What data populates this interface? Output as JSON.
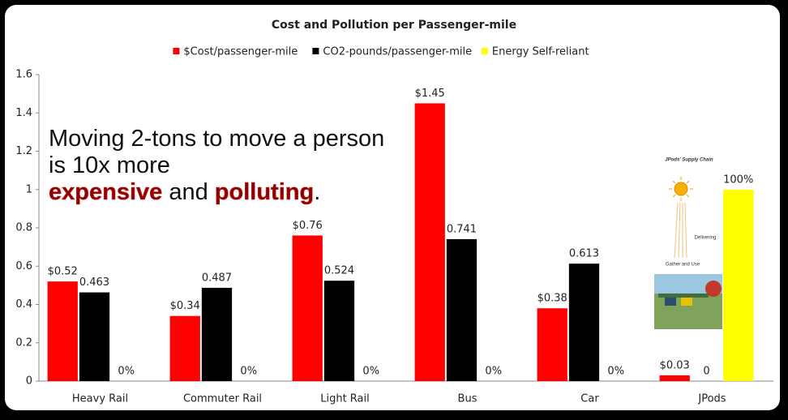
{
  "chart_data": {
    "type": "bar",
    "title": "Cost and Pollution per Passenger-mile",
    "categories": [
      "Heavy Rail",
      "Commuter Rail",
      "Light Rail",
      "Bus",
      "Car",
      "JPods"
    ],
    "series": [
      {
        "name": "$Cost/passenger-mile",
        "color": "#ff0000",
        "values": [
          0.52,
          0.34,
          0.76,
          1.45,
          0.38,
          0.03
        ],
        "value_labels": [
          "$0.52",
          "$0.34",
          "$0.76",
          "$1.45",
          "$0.38",
          "$0.03"
        ]
      },
      {
        "name": "CO2-pounds/passenger-mile",
        "color": "#000000",
        "values": [
          0.463,
          0.487,
          0.524,
          0.741,
          0.613,
          0
        ]
      },
      {
        "name": "Energy Self-reliant",
        "color": "#ffff00",
        "values": [
          0,
          0,
          0,
          0,
          0,
          1
        ],
        "value_labels": [
          "0%",
          "0%",
          "0%",
          "0%",
          "0%",
          "100%"
        ]
      }
    ],
    "ylim": [
      0,
      1.6
    ],
    "yticks": [
      0,
      0.2,
      0.4,
      0.6,
      0.8,
      1,
      1.2,
      1.4,
      1.6
    ],
    "grid": false,
    "legend": "top",
    "annotation": {
      "line1": "Moving 2-tons to move a person",
      "line2": "is 10x more",
      "emphasis1": "expensive",
      "connector": "and",
      "emphasis2": "polluting",
      "end": "."
    },
    "inset": {
      "title": "JPods' Supply Chain",
      "label1": "Delivering",
      "label2": "Gather and Use"
    }
  }
}
